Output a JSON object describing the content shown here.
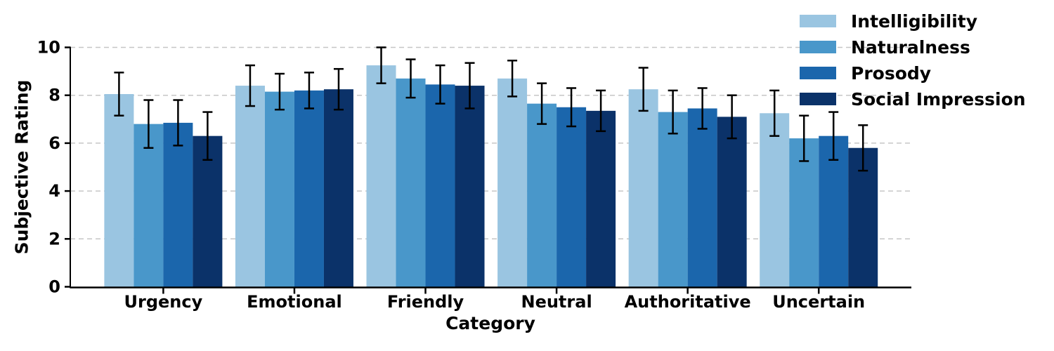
{
  "chart_data": {
    "type": "bar",
    "title": "",
    "xlabel": "Category",
    "ylabel": "Subjective Rating",
    "categories": [
      "Urgency",
      "Emotional",
      "Friendly",
      "Neutral",
      "Authoritative",
      "Uncertain"
    ],
    "series": [
      {
        "name": "Intelligibility",
        "color": "#9AC5E1",
        "values": [
          8.05,
          8.4,
          9.25,
          8.7,
          8.25,
          7.25
        ],
        "errors": [
          0.9,
          0.85,
          0.75,
          0.75,
          0.9,
          0.95
        ]
      },
      {
        "name": "Naturalness",
        "color": "#4997CA",
        "values": [
          6.8,
          8.15,
          8.7,
          7.65,
          7.3,
          6.2
        ],
        "errors": [
          1.0,
          0.75,
          0.8,
          0.85,
          0.9,
          0.95
        ]
      },
      {
        "name": "Prosody",
        "color": "#1B66AC",
        "values": [
          6.85,
          8.2,
          8.45,
          7.5,
          7.45,
          6.3
        ],
        "errors": [
          0.95,
          0.75,
          0.8,
          0.8,
          0.85,
          1.0
        ]
      },
      {
        "name": "Social Impression",
        "color": "#0B3269",
        "values": [
          6.3,
          8.25,
          8.4,
          7.35,
          7.1,
          5.8
        ],
        "errors": [
          1.0,
          0.85,
          0.95,
          0.85,
          0.9,
          0.95
        ]
      }
    ],
    "ylim": [
      0,
      10
    ],
    "yticks": [
      0,
      2,
      4,
      6,
      8,
      10
    ],
    "grid": {
      "axis": "y",
      "style": "dashed",
      "color": "#c6c6c6"
    },
    "error_bars": {
      "color": "#000000",
      "caps": true
    },
    "legend": {
      "position": "top-right",
      "frame": false
    },
    "axis_color": "#000000",
    "background": "#ffffff"
  }
}
